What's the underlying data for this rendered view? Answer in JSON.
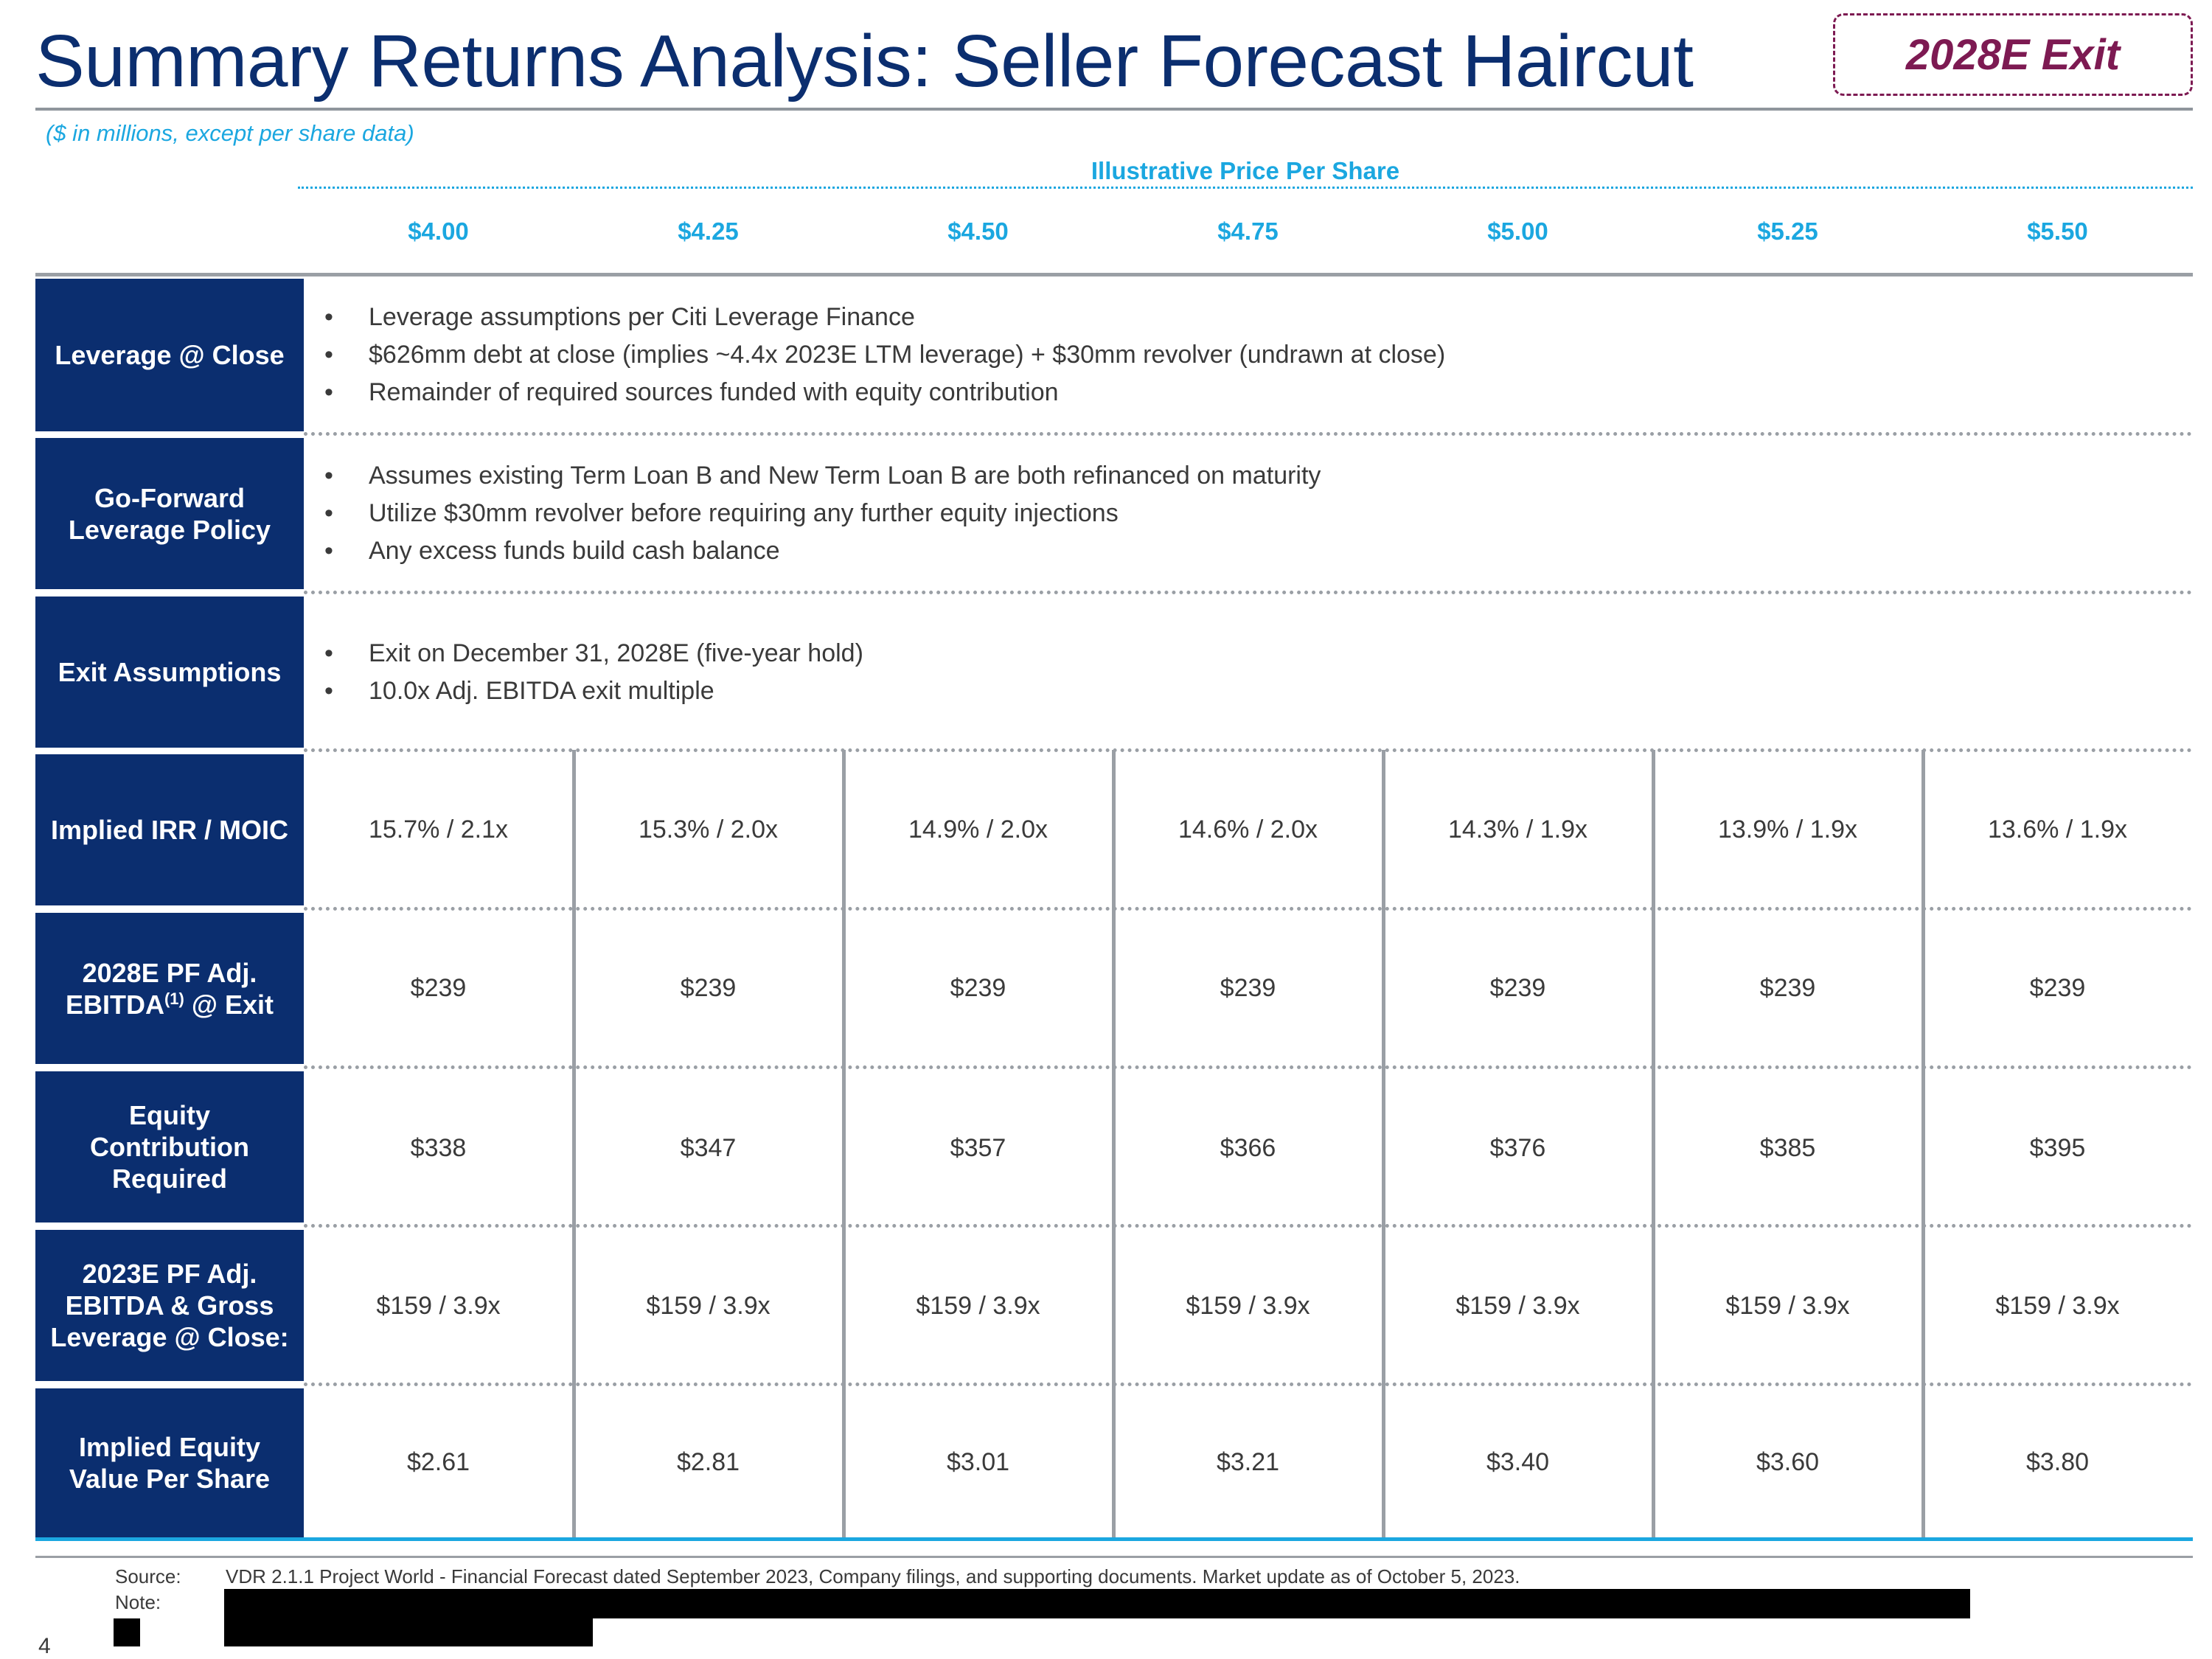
{
  "header": {
    "title": "Summary Returns Analysis: Seller Forecast Haircut",
    "exit_badge": "2028E Exit",
    "units_note": "($ in millions, except per share data)"
  },
  "price_header": {
    "label": "Illustrative Price Per Share",
    "prices": [
      "$4.00",
      "$4.25",
      "$4.50",
      "$4.75",
      "$5.00",
      "$5.25",
      "$5.50"
    ]
  },
  "sections": {
    "leverage_at_close": {
      "label": "Leverage @ Close",
      "bullets": [
        "Leverage assumptions per Citi Leverage Finance",
        "$626mm debt at close (implies ~4.4x 2023E LTM leverage) + $30mm revolver (undrawn at close)",
        "Remainder of required sources funded with equity contribution"
      ]
    },
    "go_forward": {
      "label": "Go-Forward Leverage Policy",
      "bullets": [
        "Assumes existing Term Loan B and New Term Loan B are both refinanced on maturity",
        "Utilize $30mm revolver before requiring any further equity injections",
        "Any excess funds build cash balance"
      ]
    },
    "exit_assumptions": {
      "label": "Exit Assumptions",
      "bullets": [
        "Exit on December 31, 2028E (five-year hold)",
        "10.0x Adj. EBITDA exit multiple"
      ]
    }
  },
  "bullet_char": "•",
  "rows": {
    "irr_moic": {
      "label": "Implied IRR / MOIC",
      "values": [
        "15.7% / 2.1x",
        "15.3% / 2.0x",
        "14.9% / 2.0x",
        "14.6% / 2.0x",
        "14.3% / 1.9x",
        "13.9% / 1.9x",
        "13.6% / 1.9x"
      ]
    },
    "ebitda_exit": {
      "label_main": "2028E PF Adj. EBITDA",
      "label_sup": "(1)",
      "label_tail": " @ Exit",
      "values": [
        "$239",
        "$239",
        "$239",
        "$239",
        "$239",
        "$239",
        "$239"
      ]
    },
    "equity_contribution": {
      "label": "Equity Contribution Required",
      "values": [
        "$338",
        "$347",
        "$357",
        "$366",
        "$376",
        "$385",
        "$395"
      ]
    },
    "ebitda_leverage": {
      "label": "2023E PF Adj. EBITDA & Gross Leverage @ Close:",
      "values": [
        "$159 / 3.9x",
        "$159 / 3.9x",
        "$159 / 3.9x",
        "$159 / 3.9x",
        "$159 / 3.9x",
        "$159 / 3.9x",
        "$159 / 3.9x"
      ]
    },
    "equity_value": {
      "label": "Implied Equity Value Per Share",
      "values": [
        "$2.61",
        "$2.81",
        "$3.01",
        "$3.21",
        "$3.40",
        "$3.60",
        "$3.80"
      ]
    }
  },
  "footer": {
    "source_key": "Source:",
    "source_text": "VDR 2.1.1 Project World - Financial Forecast dated September 2023, Company filings, and supporting documents. Market update as of October 5, 2023.",
    "note_key": "Note:",
    "page_number": "4"
  }
}
